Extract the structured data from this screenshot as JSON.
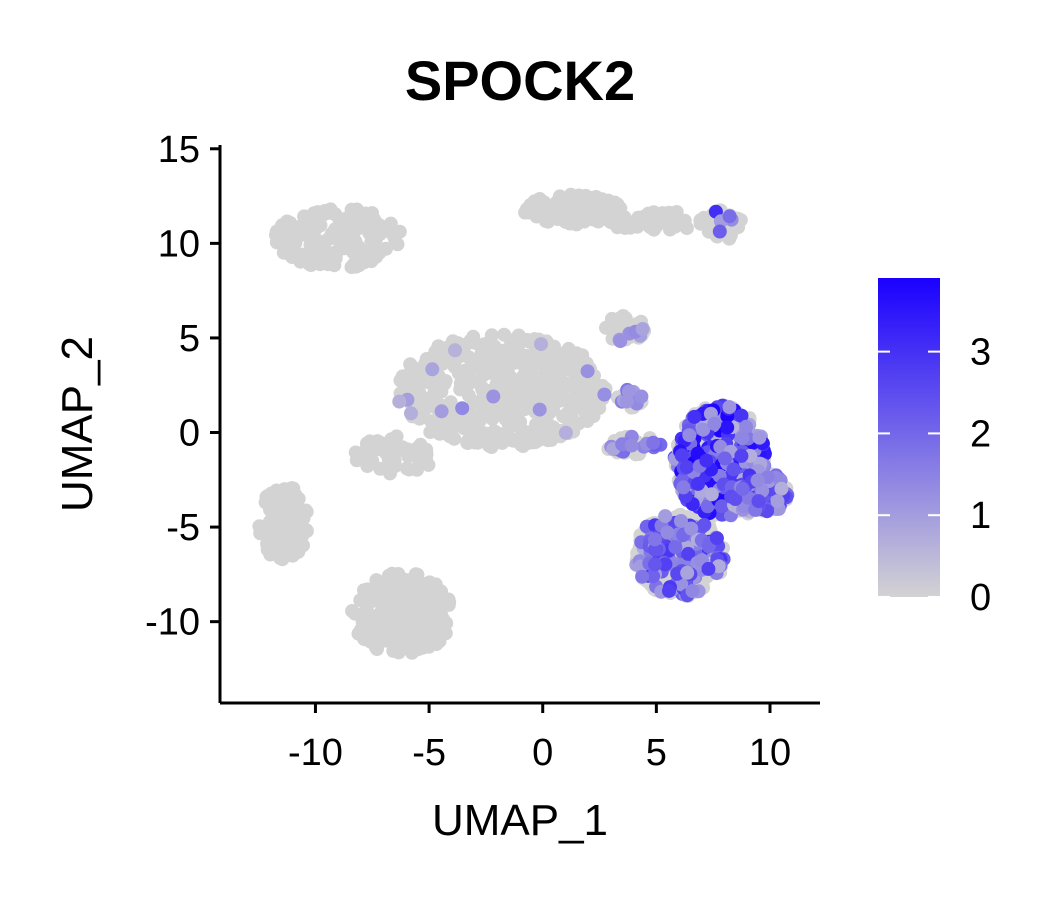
{
  "chart_data": {
    "type": "scatter",
    "title": "SPOCK2",
    "xlabel": "UMAP_1",
    "ylabel": "UMAP_2",
    "xlim": [
      -14.2,
      12.2
    ],
    "ylim": [
      -14.3,
      15.2
    ],
    "x_ticks": [
      -10,
      -5,
      0,
      5,
      10
    ],
    "x_tick_labels": [
      "-10",
      "-5",
      "0",
      "5",
      "10"
    ],
    "y_ticks": [
      -10,
      -5,
      0,
      5,
      10,
      15
    ],
    "y_tick_labels": [
      "-10",
      "-5",
      "0",
      "5",
      "10",
      "15"
    ],
    "grid": false,
    "legend_position": "right",
    "color_scale": {
      "min": 0,
      "max": 3.9,
      "low_color": "#d3d3d3",
      "high_color": "#1a00ff",
      "ticks": [
        0,
        1,
        2,
        3
      ],
      "tick_labels": [
        "0",
        "1",
        "2",
        "3"
      ]
    },
    "clusters": [
      {
        "cx": -9.0,
        "cy": 10.3,
        "rx": 2.8,
        "ry": 1.6,
        "n": 170,
        "expr_fraction": 0.0,
        "expr_max": 0
      },
      {
        "cx": 1.3,
        "cy": 11.8,
        "rx": 2.2,
        "ry": 0.8,
        "n": 110,
        "expr_fraction": 0.0,
        "expr_max": 0
      },
      {
        "cx": 5.0,
        "cy": 11.2,
        "rx": 2.5,
        "ry": 0.5,
        "n": 60,
        "expr_fraction": 0.0,
        "expr_max": 0
      },
      {
        "cx": 8.0,
        "cy": 11.0,
        "rx": 0.8,
        "ry": 0.8,
        "n": 40,
        "expr_fraction": 0.15,
        "expr_max": 3.5
      },
      {
        "cx": -1.8,
        "cy": 2.2,
        "rx": 4.6,
        "ry": 3.0,
        "n": 460,
        "expr_fraction": 0.02,
        "expr_max": 1.5
      },
      {
        "cx": 3.6,
        "cy": 5.5,
        "rx": 0.9,
        "ry": 0.7,
        "n": 40,
        "expr_fraction": 0.08,
        "expr_max": 1.5
      },
      {
        "cx": 3.8,
        "cy": 1.8,
        "rx": 0.6,
        "ry": 0.5,
        "n": 20,
        "expr_fraction": 0.45,
        "expr_max": 1.8
      },
      {
        "cx": 4.0,
        "cy": -0.7,
        "rx": 1.2,
        "ry": 0.5,
        "n": 35,
        "expr_fraction": 0.3,
        "expr_max": 2.2
      },
      {
        "cx": -6.5,
        "cy": -1.2,
        "rx": 1.8,
        "ry": 1.0,
        "n": 55,
        "expr_fraction": 0.0,
        "expr_max": 0
      },
      {
        "cx": -11.4,
        "cy": -4.8,
        "rx": 1.1,
        "ry": 2.0,
        "n": 120,
        "expr_fraction": 0.0,
        "expr_max": 0
      },
      {
        "cx": -6.2,
        "cy": -9.6,
        "rx": 2.2,
        "ry": 2.2,
        "n": 230,
        "expr_fraction": 0.0,
        "expr_max": 0
      },
      {
        "cx": 7.8,
        "cy": -1.5,
        "rx": 2.0,
        "ry": 3.0,
        "n": 520,
        "expr_fraction": 0.6,
        "expr_max": 3.9
      },
      {
        "cx": 9.5,
        "cy": -3.2,
        "rx": 1.3,
        "ry": 1.2,
        "n": 160,
        "expr_fraction": 0.55,
        "expr_max": 3.0
      },
      {
        "cx": 6.0,
        "cy": -6.5,
        "rx": 2.0,
        "ry": 2.2,
        "n": 380,
        "expr_fraction": 0.35,
        "expr_max": 3.0
      }
    ]
  }
}
